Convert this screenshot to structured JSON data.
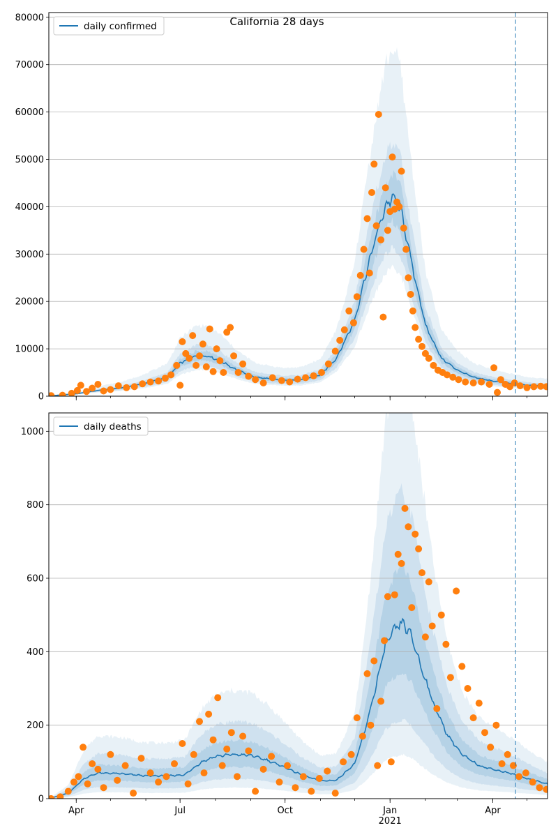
{
  "title": "California 28 days",
  "colors": {
    "line": "#1f77b4",
    "points": "#ff7f0e",
    "band": "#1f77b4",
    "grid": "#b0b0b0",
    "vline": "#1f77b4"
  },
  "x_axis": {
    "start": "2020-03-08",
    "end": "2021-05-19",
    "ticks": [
      {
        "date": "2020-04-01",
        "label": "Apr"
      },
      {
        "date": "2020-07-01",
        "label": "Jul"
      },
      {
        "date": "2020-10-01",
        "label": "Oct"
      },
      {
        "date": "2021-01-01",
        "label": "Jan\n2021"
      },
      {
        "date": "2021-04-01",
        "label": "Apr"
      }
    ],
    "forecast_start": "2021-04-21"
  },
  "chart_data": [
    {
      "type": "line",
      "legend": "daily confirmed",
      "legend_position": "top-left",
      "grid": "y",
      "ylim": [
        0,
        81000
      ],
      "yticks": [
        0,
        10000,
        20000,
        30000,
        40000,
        50000,
        60000,
        70000,
        80000
      ],
      "x": [
        "2020-03-08",
        "2020-04-01",
        "2020-04-20",
        "2020-05-10",
        "2020-06-01",
        "2020-06-20",
        "2020-07-01",
        "2020-07-15",
        "2020-07-25",
        "2020-08-05",
        "2020-08-20",
        "2020-09-05",
        "2020-09-20",
        "2020-10-01",
        "2020-10-15",
        "2020-11-01",
        "2020-11-15",
        "2020-12-01",
        "2020-12-10",
        "2020-12-20",
        "2020-12-28",
        "2021-01-03",
        "2021-01-10",
        "2021-01-20",
        "2021-02-01",
        "2021-02-15",
        "2021-03-01",
        "2021-03-15",
        "2021-04-01",
        "2021-04-15",
        "2021-05-01",
        "2021-05-19"
      ],
      "y": [
        50,
        500,
        1200,
        1700,
        2700,
        4000,
        7000,
        8500,
        8500,
        7500,
        5500,
        4000,
        3600,
        3400,
        3500,
        4500,
        8000,
        16000,
        25000,
        34000,
        40000,
        42000,
        40000,
        28000,
        15000,
        8000,
        5500,
        4000,
        3200,
        2800,
        2300,
        2100
      ],
      "band_inner_factor": [
        0.88,
        1.12
      ],
      "band_mid_factor": [
        0.75,
        1.27
      ],
      "band_outer_factor": [
        0.65,
        1.75
      ],
      "points": {
        "x": [
          "2020-03-10",
          "2020-03-20",
          "2020-03-28",
          "2020-04-02",
          "2020-04-05",
          "2020-04-10",
          "2020-04-15",
          "2020-04-20",
          "2020-04-25",
          "2020-05-01",
          "2020-05-08",
          "2020-05-15",
          "2020-05-22",
          "2020-05-29",
          "2020-06-05",
          "2020-06-12",
          "2020-06-18",
          "2020-06-23",
          "2020-06-28",
          "2020-07-01",
          "2020-07-03",
          "2020-07-06",
          "2020-07-09",
          "2020-07-12",
          "2020-07-15",
          "2020-07-18",
          "2020-07-21",
          "2020-07-24",
          "2020-07-27",
          "2020-07-30",
          "2020-08-02",
          "2020-08-05",
          "2020-08-08",
          "2020-08-11",
          "2020-08-14",
          "2020-08-17",
          "2020-08-21",
          "2020-08-25",
          "2020-08-30",
          "2020-09-05",
          "2020-09-12",
          "2020-09-20",
          "2020-09-28",
          "2020-10-05",
          "2020-10-12",
          "2020-10-19",
          "2020-10-26",
          "2020-11-02",
          "2020-11-08",
          "2020-11-14",
          "2020-11-18",
          "2020-11-22",
          "2020-11-26",
          "2020-11-30",
          "2020-12-03",
          "2020-12-06",
          "2020-12-09",
          "2020-12-12",
          "2020-12-14",
          "2020-12-16",
          "2020-12-18",
          "2020-12-20",
          "2020-12-22",
          "2020-12-24",
          "2020-12-26",
          "2020-12-28",
          "2020-12-30",
          "2021-01-01",
          "2021-01-03",
          "2021-01-05",
          "2021-01-07",
          "2021-01-09",
          "2021-01-11",
          "2021-01-13",
          "2021-01-15",
          "2021-01-17",
          "2021-01-19",
          "2021-01-21",
          "2021-01-23",
          "2021-01-26",
          "2021-01-29",
          "2021-02-01",
          "2021-02-04",
          "2021-02-08",
          "2021-02-12",
          "2021-02-16",
          "2021-02-20",
          "2021-02-25",
          "2021-03-02",
          "2021-03-08",
          "2021-03-15",
          "2021-03-22",
          "2021-03-29",
          "2021-04-02",
          "2021-04-05",
          "2021-04-08",
          "2021-04-12",
          "2021-04-16",
          "2021-04-20",
          "2021-04-25",
          "2021-05-01",
          "2021-05-07",
          "2021-05-13",
          "2021-05-18"
        ],
        "y": [
          100,
          200,
          600,
          1200,
          2300,
          1000,
          1700,
          2500,
          1100,
          1400,
          2200,
          1800,
          2000,
          2600,
          3000,
          3200,
          3800,
          4500,
          6500,
          2300,
          11500,
          9000,
          8000,
          12800,
          6500,
          8500,
          11000,
          6200,
          14200,
          5200,
          10000,
          7500,
          5000,
          13500,
          14500,
          8500,
          5000,
          6800,
          4200,
          3500,
          2800,
          3900,
          3300,
          3000,
          3600,
          3900,
          4300,
          5000,
          6800,
          9500,
          11800,
          14000,
          18000,
          15500,
          21000,
          25500,
          31000,
          37500,
          26000,
          43000,
          49000,
          36000,
          59500,
          33000,
          16700,
          44000,
          35000,
          39000,
          50500,
          39500,
          41000,
          40000,
          47500,
          35500,
          31000,
          25000,
          21500,
          18000,
          14500,
          12000,
          10500,
          9000,
          8000,
          6500,
          5500,
          5000,
          4500,
          4000,
          3500,
          3000,
          2800,
          3000,
          2500,
          6000,
          800,
          3500,
          2500,
          2000,
          2800,
          2200,
          1800,
          2000,
          2100,
          2000
        ]
      }
    },
    {
      "type": "line",
      "legend": "daily deaths",
      "legend_position": "top-left",
      "grid": "y",
      "ylim": [
        0,
        1050
      ],
      "yticks": [
        0,
        200,
        400,
        600,
        800,
        1000
      ],
      "x": [
        "2020-03-08",
        "2020-03-25",
        "2020-04-08",
        "2020-04-20",
        "2020-05-10",
        "2020-06-01",
        "2020-06-20",
        "2020-07-05",
        "2020-07-20",
        "2020-08-01",
        "2020-08-15",
        "2020-09-01",
        "2020-09-15",
        "2020-10-01",
        "2020-10-15",
        "2020-11-01",
        "2020-11-15",
        "2020-12-01",
        "2020-12-10",
        "2020-12-20",
        "2020-12-28",
        "2021-01-05",
        "2021-01-12",
        "2021-01-20",
        "2021-01-28",
        "2021-02-08",
        "2021-02-20",
        "2021-03-05",
        "2021-03-20",
        "2021-04-01",
        "2021-04-15",
        "2021-05-01",
        "2021-05-19"
      ],
      "y": [
        0,
        15,
        55,
        70,
        68,
        62,
        62,
        65,
        100,
        115,
        120,
        118,
        105,
        85,
        65,
        48,
        50,
        95,
        185,
        310,
        420,
        460,
        480,
        440,
        360,
        260,
        175,
        120,
        90,
        80,
        70,
        55,
        40
      ],
      "band_inner_factor": [
        0.72,
        1.32
      ],
      "band_mid_factor": [
        0.45,
        1.75
      ],
      "band_outer_factor": [
        0.25,
        2.45
      ],
      "points": {
        "x": [
          "2020-03-10",
          "2020-03-18",
          "2020-03-25",
          "2020-03-30",
          "2020-04-03",
          "2020-04-07",
          "2020-04-11",
          "2020-04-15",
          "2020-04-20",
          "2020-04-25",
          "2020-05-01",
          "2020-05-07",
          "2020-05-14",
          "2020-05-21",
          "2020-05-28",
          "2020-06-05",
          "2020-06-12",
          "2020-06-19",
          "2020-06-26",
          "2020-07-03",
          "2020-07-08",
          "2020-07-13",
          "2020-07-18",
          "2020-07-22",
          "2020-07-26",
          "2020-07-30",
          "2020-08-03",
          "2020-08-07",
          "2020-08-11",
          "2020-08-15",
          "2020-08-20",
          "2020-08-25",
          "2020-08-30",
          "2020-09-05",
          "2020-09-12",
          "2020-09-19",
          "2020-09-26",
          "2020-10-03",
          "2020-10-10",
          "2020-10-17",
          "2020-10-24",
          "2020-10-31",
          "2020-11-07",
          "2020-11-14",
          "2020-11-21",
          "2020-11-28",
          "2020-12-03",
          "2020-12-08",
          "2020-12-12",
          "2020-12-15",
          "2020-12-18",
          "2020-12-21",
          "2020-12-24",
          "2020-12-27",
          "2020-12-30",
          "2021-01-02",
          "2021-01-05",
          "2021-01-08",
          "2021-01-11",
          "2021-01-14",
          "2021-01-17",
          "2021-01-20",
          "2021-01-23",
          "2021-01-26",
          "2021-01-29",
          "2021-02-01",
          "2021-02-04",
          "2021-02-07",
          "2021-02-11",
          "2021-02-15",
          "2021-02-19",
          "2021-02-23",
          "2021-02-28",
          "2021-03-05",
          "2021-03-10",
          "2021-03-15",
          "2021-03-20",
          "2021-03-25",
          "2021-03-30",
          "2021-04-04",
          "2021-04-09",
          "2021-04-14",
          "2021-04-19",
          "2021-04-24",
          "2021-04-30",
          "2021-05-06",
          "2021-05-12",
          "2021-05-18"
        ],
        "y": [
          0,
          5,
          20,
          45,
          60,
          140,
          40,
          95,
          80,
          30,
          120,
          50,
          90,
          15,
          110,
          70,
          45,
          60,
          95,
          150,
          40,
          120,
          210,
          70,
          230,
          160,
          275,
          90,
          135,
          180,
          60,
          170,
          130,
          20,
          80,
          115,
          45,
          90,
          30,
          60,
          20,
          55,
          75,
          15,
          100,
          120,
          220,
          170,
          340,
          200,
          375,
          90,
          265,
          430,
          550,
          100,
          555,
          665,
          640,
          790,
          740,
          520,
          720,
          680,
          615,
          440,
          590,
          470,
          245,
          500,
          420,
          330,
          565,
          360,
          300,
          220,
          260,
          180,
          140,
          200,
          95,
          120,
          90,
          60,
          70,
          45,
          30,
          25
        ]
      }
    }
  ]
}
